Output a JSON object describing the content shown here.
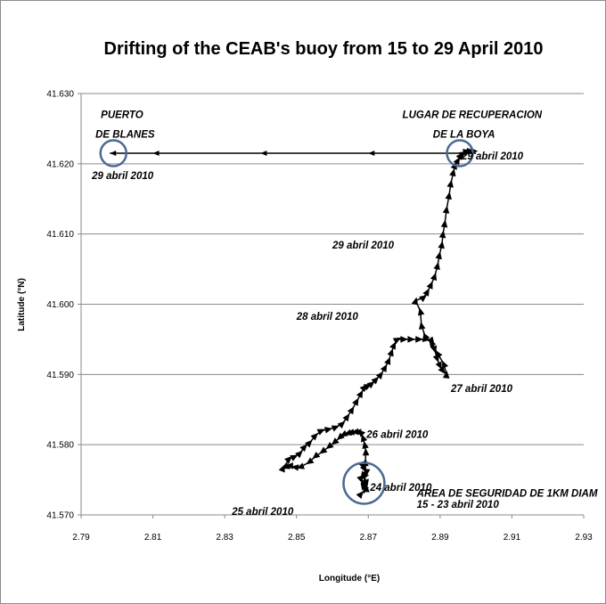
{
  "chart_data": {
    "type": "scatter",
    "title": "Drifting of the CEAB's buoy  from 15 to 29 April 2010",
    "xlabel": "Longitude (°E)",
    "ylabel": "Latitude (°N)",
    "xlim": [
      2.79,
      2.93
    ],
    "ylim": [
      41.57,
      41.63
    ],
    "x_ticks": [
      "2.79",
      "2.81",
      "2.83",
      "2.85",
      "2.87",
      "2.89",
      "2.91",
      "2.93"
    ],
    "y_ticks": [
      "41.570",
      "41.580",
      "41.590",
      "41.600",
      "41.610",
      "41.620",
      "41.630"
    ],
    "grid": "horizontal",
    "legend": "none",
    "series": [
      {
        "marker": "triangle",
        "color": "#000000",
        "points": [
          [
            2.8685,
            41.577
          ],
          [
            2.869,
            41.5765
          ],
          [
            2.8695,
            41.576
          ],
          [
            2.8688,
            41.5755
          ],
          [
            2.868,
            41.575
          ],
          [
            2.8695,
            41.5745
          ],
          [
            2.8685,
            41.574
          ],
          [
            2.869,
            41.5735
          ],
          [
            2.868,
            41.573
          ],
          [
            2.8695,
            41.5738
          ],
          [
            2.8685,
            41.5758
          ],
          [
            2.869,
            41.5748
          ],
          [
            2.8692,
            41.5775
          ],
          [
            2.8693,
            41.579
          ],
          [
            2.869,
            41.58
          ],
          [
            2.8685,
            41.581
          ],
          [
            2.8678,
            41.5818
          ],
          [
            2.867,
            41.5818
          ],
          [
            2.8662,
            41.5818
          ],
          [
            2.865,
            41.5817
          ],
          [
            2.8642,
            41.5816
          ],
          [
            2.863,
            41.5814
          ],
          [
            2.862,
            41.581
          ],
          [
            2.8605,
            41.5803
          ],
          [
            2.859,
            41.5797
          ],
          [
            2.8572,
            41.579
          ],
          [
            2.8552,
            41.5783
          ],
          [
            2.8535,
            41.5775
          ],
          [
            2.851,
            41.5768
          ],
          [
            2.8495,
            41.5768
          ],
          [
            2.848,
            41.577
          ],
          [
            2.847,
            41.5768
          ],
          [
            2.8463,
            41.5767
          ],
          [
            2.848,
            41.578
          ],
          [
            2.8495,
            41.5783
          ],
          [
            2.851,
            41.5788
          ],
          [
            2.8523,
            41.5797
          ],
          [
            2.8537,
            41.5803
          ],
          [
            2.8553,
            41.5813
          ],
          [
            2.857,
            41.582
          ],
          [
            2.859,
            41.5822
          ],
          [
            2.861,
            41.5825
          ],
          [
            2.8628,
            41.583
          ],
          [
            2.8642,
            41.584
          ],
          [
            2.8655,
            41.585
          ],
          [
            2.8668,
            41.5862
          ],
          [
            2.868,
            41.5873
          ],
          [
            2.869,
            41.5882
          ],
          [
            2.87,
            41.5884
          ],
          [
            2.871,
            41.5887
          ],
          [
            2.8722,
            41.5893
          ],
          [
            2.8735,
            41.59
          ],
          [
            2.8747,
            41.591
          ],
          [
            2.8757,
            41.592
          ],
          [
            2.8765,
            41.5932
          ],
          [
            2.8772,
            41.5942
          ],
          [
            2.8782,
            41.595
          ],
          [
            2.88,
            41.595
          ],
          [
            2.882,
            41.595
          ],
          [
            2.8842,
            41.595
          ],
          [
            2.8862,
            41.595
          ],
          [
            2.8878,
            41.5947
          ],
          [
            2.8885,
            41.5935
          ],
          [
            2.8892,
            41.5922
          ],
          [
            2.89,
            41.5912
          ],
          [
            2.8908,
            41.5905
          ],
          [
            2.8918,
            41.59
          ],
          [
            2.891,
            41.5915
          ],
          [
            2.8893,
            41.593
          ],
          [
            2.8875,
            41.5945
          ],
          [
            2.8858,
            41.5955
          ],
          [
            2.8848,
            41.597
          ],
          [
            2.8845,
            41.599
          ],
          [
            2.8832,
            41.6005
          ],
          [
            2.8855,
            41.601
          ],
          [
            2.8865,
            41.6018
          ],
          [
            2.8875,
            41.6028
          ],
          [
            2.8885,
            41.604
          ],
          [
            2.8893,
            41.6055
          ],
          [
            2.8898,
            41.607
          ],
          [
            2.8905,
            41.6085
          ],
          [
            2.8908,
            41.61
          ],
          [
            2.8913,
            41.6115
          ],
          [
            2.8918,
            41.6135
          ],
          [
            2.8925,
            41.6155
          ],
          [
            2.893,
            41.6172
          ],
          [
            2.8937,
            41.6188
          ],
          [
            2.8942,
            41.6198
          ],
          [
            2.895,
            41.6205
          ],
          [
            2.8958,
            41.6212
          ],
          [
            2.8965,
            41.6215
          ],
          [
            2.8975,
            41.6218
          ],
          [
            2.8985,
            41.6218
          ],
          [
            2.8995,
            41.6218
          ]
        ]
      },
      {
        "marker": "arrow-line",
        "color": "#000000",
        "points": [
          [
            2.9,
            41.6215
          ],
          [
            2.87,
            41.6215
          ],
          [
            2.84,
            41.6215
          ],
          [
            2.81,
            41.6215
          ],
          [
            2.798,
            41.6215
          ]
        ]
      }
    ],
    "annotations": [
      {
        "id": "puerto1",
        "text": "PUERTO",
        "x": 2.7955,
        "y": 41.6265
      },
      {
        "id": "puerto2",
        "text": "DE BLANES",
        "x": 2.794,
        "y": 41.6237
      },
      {
        "id": "lugar1",
        "text": "LUGAR DE RECUPERACION",
        "x": 2.8795,
        "y": 41.6265
      },
      {
        "id": "lugar2",
        "text": "DE LA BOYA",
        "x": 2.888,
        "y": 41.6237
      },
      {
        "id": "a29a",
        "text": "29 abril 2010",
        "x": 2.896,
        "y": 41.6206
      },
      {
        "id": "a29b",
        "text": "29 abril 2010",
        "x": 2.793,
        "y": 41.6178
      },
      {
        "id": "a29c",
        "text": "29 abril 2010",
        "x": 2.86,
        "y": 41.6079
      },
      {
        "id": "a28",
        "text": "28 abril 2010",
        "x": 2.85,
        "y": 41.5978
      },
      {
        "id": "a27",
        "text": "27 abril 2010",
        "x": 2.893,
        "y": 41.5875
      },
      {
        "id": "a26",
        "text": "26 abril 2010",
        "x": 2.8695,
        "y": 41.581
      },
      {
        "id": "a25",
        "text": "25 abril 2010",
        "x": 2.832,
        "y": 41.57
      },
      {
        "id": "a24",
        "text": "24 abril 2010",
        "x": 2.8705,
        "y": 41.5734
      },
      {
        "id": "area1",
        "text": "AREA DE SEGURIDAD DE 1KM DIAM",
        "x": 2.8835,
        "y": 41.5726
      },
      {
        "id": "area2",
        "text": "15 - 23 abril 2010",
        "x": 2.8835,
        "y": 41.571
      }
    ],
    "circles": [
      {
        "x": 2.799,
        "y": 41.6215
      },
      {
        "x": 2.8955,
        "y": 41.6215
      },
      {
        "x": 2.8688,
        "y": 41.5745
      }
    ],
    "circle_color": "#4a6a94"
  }
}
